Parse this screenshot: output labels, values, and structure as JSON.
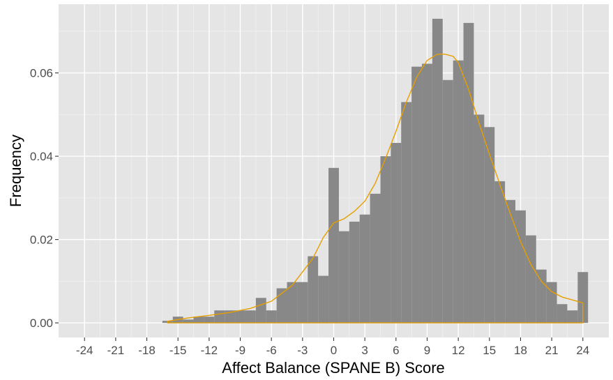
{
  "chart_data": {
    "type": "histogram",
    "title": "",
    "xlabel": "Affect Balance (SPANE B) Score",
    "ylabel": "Frequency",
    "xlim": [
      -26.5,
      26.5
    ],
    "ylim": [
      -0.0035,
      0.0765
    ],
    "x_ticks": [
      -24,
      -21,
      -18,
      -15,
      -12,
      -9,
      -6,
      -3,
      0,
      3,
      6,
      9,
      12,
      15,
      18,
      21,
      24
    ],
    "y_ticks": [
      0.0,
      0.02,
      0.04,
      0.06
    ],
    "y_tick_labels": [
      "0.00",
      "0.02",
      "0.04",
      "0.06"
    ],
    "grid": true,
    "background_color": "#e5e5e5",
    "bar_color": "#888888",
    "density_color": "#e69f00",
    "bin_width": 1,
    "bins": [
      {
        "x": -16,
        "y": 0.0005
      },
      {
        "x": -15,
        "y": 0.0015
      },
      {
        "x": -14,
        "y": 0.0008
      },
      {
        "x": -13,
        "y": 0.0015
      },
      {
        "x": -12,
        "y": 0.0015
      },
      {
        "x": -11,
        "y": 0.003
      },
      {
        "x": -10,
        "y": 0.003
      },
      {
        "x": -9,
        "y": 0.003
      },
      {
        "x": -8,
        "y": 0.003
      },
      {
        "x": -7,
        "y": 0.006
      },
      {
        "x": -6,
        "y": 0.003
      },
      {
        "x": -5,
        "y": 0.0083
      },
      {
        "x": -4,
        "y": 0.0098
      },
      {
        "x": -3,
        "y": 0.0098
      },
      {
        "x": -2,
        "y": 0.016
      },
      {
        "x": -1,
        "y": 0.0113
      },
      {
        "x": 0,
        "y": 0.0372
      },
      {
        "x": 1,
        "y": 0.022
      },
      {
        "x": 2,
        "y": 0.0243
      },
      {
        "x": 3,
        "y": 0.026
      },
      {
        "x": 4,
        "y": 0.031
      },
      {
        "x": 5,
        "y": 0.04
      },
      {
        "x": 6,
        "y": 0.0432
      },
      {
        "x": 7,
        "y": 0.053
      },
      {
        "x": 8,
        "y": 0.0615
      },
      {
        "x": 9,
        "y": 0.0622
      },
      {
        "x": 10,
        "y": 0.073
      },
      {
        "x": 11,
        "y": 0.0583
      },
      {
        "x": 12,
        "y": 0.063
      },
      {
        "x": 13,
        "y": 0.072
      },
      {
        "x": 14,
        "y": 0.05
      },
      {
        "x": 15,
        "y": 0.047
      },
      {
        "x": 16,
        "y": 0.034
      },
      {
        "x": 17,
        "y": 0.0295
      },
      {
        "x": 18,
        "y": 0.027
      },
      {
        "x": 19,
        "y": 0.021
      },
      {
        "x": 20,
        "y": 0.0128
      },
      {
        "x": 21,
        "y": 0.0098
      },
      {
        "x": 22,
        "y": 0.0045
      },
      {
        "x": 23,
        "y": 0.003
      },
      {
        "x": 24,
        "y": 0.0122
      }
    ],
    "density": {
      "x": [
        -16,
        -14,
        -12,
        -10,
        -8,
        -6,
        -4,
        -2,
        -1,
        0,
        1,
        2,
        3,
        4,
        5,
        6,
        7,
        8,
        9,
        10,
        10.7,
        11.5,
        12,
        13,
        14,
        15,
        16,
        17,
        18,
        19,
        20,
        21,
        22,
        23,
        24
      ],
      "y": [
        0.0004,
        0.0012,
        0.0018,
        0.0025,
        0.0035,
        0.0052,
        0.009,
        0.0155,
        0.0205,
        0.024,
        0.025,
        0.0268,
        0.0292,
        0.0335,
        0.0395,
        0.046,
        0.053,
        0.059,
        0.063,
        0.0645,
        0.0645,
        0.064,
        0.0625,
        0.056,
        0.048,
        0.0405,
        0.0333,
        0.0263,
        0.0195,
        0.014,
        0.01,
        0.0075,
        0.0062,
        0.0055,
        0.0048
      ]
    }
  }
}
